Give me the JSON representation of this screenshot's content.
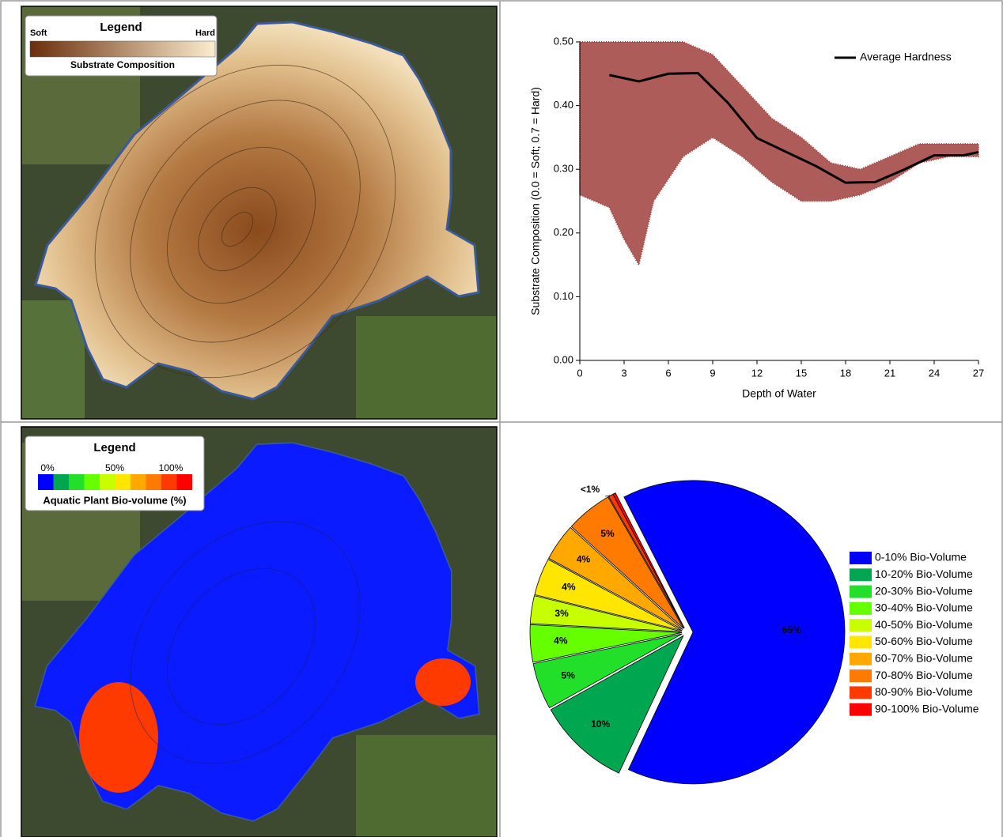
{
  "maps": [
    {
      "legend_title": "Legend",
      "left_label": "Soft",
      "right_label": "Hard",
      "caption": "Substrate Composition"
    },
    {
      "legend_title": "Legend",
      "scale_labels": [
        "0%",
        "50%",
        "100%"
      ],
      "caption": "Aquatic Plant Bio-volume (%)"
    }
  ],
  "chart_data": [
    {
      "type": "scatter",
      "xlabel": "Depth of Water",
      "ylabel": "Substrate Composition (0.0 = Soft; 0.7 = Hard)",
      "xlim": [
        0,
        27
      ],
      "xticks": [
        0,
        3,
        6,
        9,
        12,
        15,
        18,
        21,
        24,
        27
      ],
      "ylim": [
        0,
        0.5
      ],
      "yticks": [
        {
          "value": 0,
          "label": "0.00"
        },
        {
          "value": 0.1,
          "label": "0.10"
        },
        {
          "value": 0.2,
          "label": "0.20"
        },
        {
          "value": 0.3,
          "label": "0.30"
        },
        {
          "value": 0.4,
          "label": "0.40"
        },
        {
          "value": 0.5,
          "label": "0.50"
        }
      ],
      "legend": "upper right",
      "series": [
        {
          "color": "#a0403c",
          "x": [
            0,
            2,
            3,
            4,
            5,
            7,
            9,
            11,
            13,
            15,
            17,
            19,
            21,
            23,
            25,
            27
          ],
          "high": [
            0.5,
            0.5,
            0.5,
            0.5,
            0.5,
            0.5,
            0.48,
            0.43,
            0.38,
            0.35,
            0.31,
            0.3,
            0.32,
            0.34,
            0.34,
            0.34
          ],
          "low": [
            0.26,
            0.24,
            0.19,
            0.15,
            0.25,
            0.32,
            0.35,
            0.32,
            0.28,
            0.25,
            0.25,
            0.26,
            0.28,
            0.31,
            0.32,
            0.32
          ]
        },
        {
          "name": "Average Hardness",
          "color": "#000000",
          "x": [
            2,
            4,
            6,
            8,
            10,
            12,
            14,
            16,
            18,
            20,
            22,
            24,
            26,
            27
          ],
          "values": [
            0.448,
            0.438,
            0.45,
            0.451,
            0.405,
            0.349,
            0.327,
            0.305,
            0.279,
            0.28,
            0.3,
            0.322,
            0.322,
            0.327
          ]
        }
      ]
    },
    {
      "type": "pie",
      "categories": [
        "0-10% Bio-Volume",
        "10-20% Bio-Volume",
        "20-30% Bio-Volume",
        "30-40% Bio-Volume",
        "40-50% Bio-Volume",
        "50-60% Bio-Volume",
        "60-70% Bio-Volume",
        "70-80% Bio-Volume",
        "80-90% Bio-Volume",
        "90-100% Bio-Volume"
      ],
      "values": [
        65,
        10,
        5,
        4,
        3,
        4,
        4,
        5,
        0.5,
        0.3
      ],
      "value_labels": [
        "65%",
        "10%",
        "5%",
        "4%",
        "3%",
        "4%",
        "4%",
        "5%",
        "<1%",
        null
      ],
      "colors": [
        "#0000ff",
        "#00a650",
        "#22e02a",
        "#66ff00",
        "#c8ff00",
        "#ffe600",
        "#ffa800",
        "#ff7a00",
        "#ff3a00",
        "#ff0000"
      ],
      "legend": "right"
    }
  ]
}
